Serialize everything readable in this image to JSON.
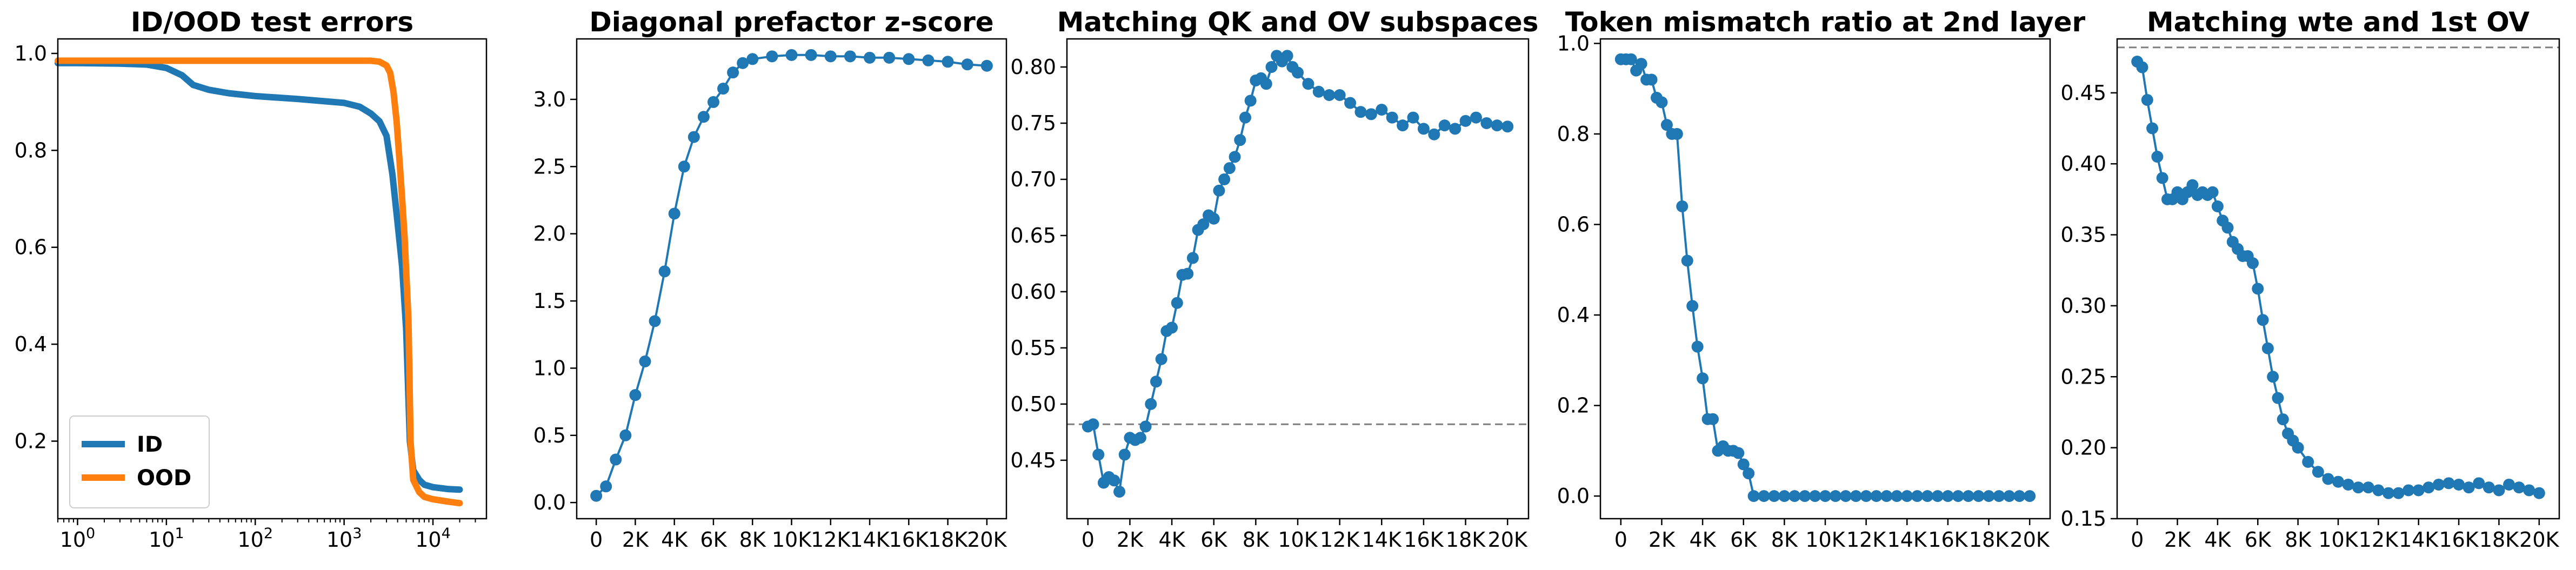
{
  "chart_data": [
    {
      "type": "line",
      "title": "ID/OOD test errors",
      "xscale": "log",
      "xlim": [
        0.6,
        40000
      ],
      "ylim": [
        0.04,
        1.03
      ],
      "x_ticks": [
        1,
        10,
        100,
        1000,
        10000
      ],
      "x_tick_labels": [
        {
          "base": "10",
          "exp": "0"
        },
        {
          "base": "10",
          "exp": "1"
        },
        {
          "base": "10",
          "exp": "2"
        },
        {
          "base": "10",
          "exp": "3"
        },
        {
          "base": "10",
          "exp": "4"
        }
      ],
      "y_ticks": [
        0.2,
        0.4,
        0.6,
        0.8,
        1.0
      ],
      "y_tick_labels": [
        "0.2",
        "0.4",
        "0.6",
        "0.8",
        "1.0"
      ],
      "legend": {
        "placement": "lower-left",
        "entries": [
          "ID",
          "OOD"
        ]
      },
      "series": [
        {
          "name": "ID",
          "color": "#1f77b4",
          "x": [
            0.6,
            1,
            3,
            6,
            10,
            15,
            20,
            30,
            50,
            100,
            300,
            1000,
            1500,
            2000,
            2500,
            3000,
            3500,
            4000,
            4500,
            5000,
            5500,
            6000,
            7000,
            8000,
            10000,
            15000,
            20000
          ],
          "y": [
            0.98,
            0.98,
            0.979,
            0.977,
            0.97,
            0.955,
            0.935,
            0.925,
            0.918,
            0.912,
            0.906,
            0.898,
            0.89,
            0.876,
            0.86,
            0.83,
            0.75,
            0.65,
            0.56,
            0.43,
            0.2,
            0.14,
            0.12,
            0.11,
            0.105,
            0.101,
            0.1
          ]
        },
        {
          "name": "OOD",
          "color": "#ff7f0e",
          "x": [
            0.6,
            1,
            10,
            100,
            1000,
            2000,
            2500,
            3000,
            3300,
            3600,
            3900,
            4200,
            4500,
            4800,
            5000,
            5300,
            5600,
            6000,
            7000,
            8000,
            10000,
            15000,
            20000
          ],
          "y": [
            0.985,
            0.985,
            0.985,
            0.985,
            0.985,
            0.985,
            0.983,
            0.975,
            0.96,
            0.92,
            0.86,
            0.78,
            0.7,
            0.62,
            0.55,
            0.45,
            0.2,
            0.12,
            0.095,
            0.085,
            0.08,
            0.075,
            0.072
          ]
        }
      ]
    },
    {
      "type": "line",
      "title": "Diagonal prefactor z-score",
      "xlim": [
        -1000,
        21000
      ],
      "ylim": [
        -0.12,
        3.45
      ],
      "x_ticks": [
        0,
        2000,
        4000,
        6000,
        8000,
        10000,
        12000,
        14000,
        16000,
        18000,
        20000
      ],
      "x_tick_labels": [
        "0",
        "2K",
        "4K",
        "6K",
        "8K",
        "10K",
        "12K",
        "14K",
        "16K",
        "18K",
        "20K"
      ],
      "y_ticks": [
        0.0,
        0.5,
        1.0,
        1.5,
        2.0,
        2.5,
        3.0
      ],
      "y_tick_labels": [
        "0.0",
        "0.5",
        "1.0",
        "1.5",
        "2.0",
        "2.5",
        "3.0"
      ],
      "series": [
        {
          "color": "#1f77b4",
          "marker": "circle",
          "x": [
            0,
            500,
            1000,
            1500,
            2000,
            2500,
            3000,
            3500,
            4000,
            4500,
            5000,
            5500,
            6000,
            6500,
            7000,
            7500,
            8000,
            9000,
            10000,
            11000,
            12000,
            13000,
            14000,
            15000,
            16000,
            17000,
            18000,
            19000,
            20000
          ],
          "y": [
            0.05,
            0.12,
            0.32,
            0.5,
            0.8,
            1.05,
            1.35,
            1.72,
            2.15,
            2.5,
            2.72,
            2.87,
            2.98,
            3.08,
            3.2,
            3.27,
            3.3,
            3.32,
            3.33,
            3.33,
            3.32,
            3.32,
            3.31,
            3.31,
            3.3,
            3.29,
            3.28,
            3.26,
            3.25
          ]
        }
      ]
    },
    {
      "type": "line",
      "title": "Matching QK and OV subspaces",
      "xlim": [
        -1000,
        21000
      ],
      "ylim": [
        0.398,
        0.825
      ],
      "x_ticks": [
        0,
        2000,
        4000,
        6000,
        8000,
        10000,
        12000,
        14000,
        16000,
        18000,
        20000
      ],
      "x_tick_labels": [
        "0",
        "2K",
        "4K",
        "6K",
        "8K",
        "10K",
        "12K",
        "14K",
        "16K",
        "18K",
        "20K"
      ],
      "y_ticks": [
        0.45,
        0.5,
        0.55,
        0.6,
        0.65,
        0.7,
        0.75,
        0.8
      ],
      "y_tick_labels": [
        "0.45",
        "0.50",
        "0.55",
        "0.60",
        "0.65",
        "0.70",
        "0.75",
        "0.80"
      ],
      "reference_line": {
        "y": 0.482,
        "style": "dashed",
        "color": "#7f7f7f"
      },
      "series": [
        {
          "color": "#1f77b4",
          "marker": "circle",
          "x": [
            0,
            250,
            500,
            750,
            1000,
            1250,
            1500,
            1750,
            2000,
            2250,
            2500,
            2750,
            3000,
            3250,
            3500,
            3750,
            4000,
            4250,
            4500,
            4750,
            5000,
            5250,
            5500,
            5750,
            6000,
            6250,
            6500,
            6750,
            7000,
            7250,
            7500,
            7750,
            8000,
            8250,
            8500,
            8750,
            9000,
            9250,
            9500,
            9750,
            10000,
            10500,
            11000,
            11500,
            12000,
            12500,
            13000,
            13500,
            14000,
            14500,
            15000,
            15500,
            16000,
            16500,
            17000,
            17500,
            18000,
            18500,
            19000,
            19500,
            20000
          ],
          "y": [
            0.48,
            0.482,
            0.455,
            0.43,
            0.435,
            0.432,
            0.422,
            0.455,
            0.47,
            0.468,
            0.47,
            0.48,
            0.5,
            0.52,
            0.54,
            0.565,
            0.568,
            0.59,
            0.615,
            0.616,
            0.63,
            0.655,
            0.66,
            0.668,
            0.665,
            0.69,
            0.7,
            0.71,
            0.72,
            0.735,
            0.755,
            0.77,
            0.788,
            0.79,
            0.785,
            0.8,
            0.81,
            0.805,
            0.81,
            0.8,
            0.795,
            0.785,
            0.778,
            0.775,
            0.775,
            0.768,
            0.76,
            0.758,
            0.762,
            0.755,
            0.748,
            0.755,
            0.745,
            0.74,
            0.748,
            0.745,
            0.752,
            0.755,
            0.75,
            0.748,
            0.747
          ]
        }
      ]
    },
    {
      "type": "line",
      "title": "Token mismatch ratio at 2nd layer",
      "xlim": [
        -1000,
        21000
      ],
      "ylim": [
        -0.05,
        1.01
      ],
      "x_ticks": [
        0,
        2000,
        4000,
        6000,
        8000,
        10000,
        12000,
        14000,
        16000,
        18000,
        20000
      ],
      "x_tick_labels": [
        "0",
        "2K",
        "4K",
        "6K",
        "8K",
        "10K",
        "12K",
        "14K",
        "16K",
        "18K",
        "20K"
      ],
      "y_ticks": [
        0.0,
        0.2,
        0.4,
        0.6,
        0.8,
        1.0
      ],
      "y_tick_labels": [
        "0.0",
        "0.2",
        "0.4",
        "0.6",
        "0.8",
        "1.0"
      ],
      "series": [
        {
          "color": "#1f77b4",
          "marker": "circle",
          "x": [
            0,
            250,
            500,
            750,
            1000,
            1250,
            1500,
            1750,
            2000,
            2250,
            2500,
            2750,
            3000,
            3250,
            3500,
            3750,
            4000,
            4250,
            4500,
            4750,
            5000,
            5250,
            5500,
            5750,
            6000,
            6250,
            6500,
            7000,
            7500,
            8000,
            8500,
            9000,
            9500,
            10000,
            10500,
            11000,
            11500,
            12000,
            12500,
            13000,
            13500,
            14000,
            14500,
            15000,
            15500,
            16000,
            16500,
            17000,
            17500,
            18000,
            18500,
            19000,
            19500,
            20000
          ],
          "y": [
            0.965,
            0.965,
            0.965,
            0.94,
            0.955,
            0.92,
            0.92,
            0.88,
            0.87,
            0.82,
            0.8,
            0.8,
            0.64,
            0.52,
            0.42,
            0.33,
            0.26,
            0.17,
            0.17,
            0.1,
            0.11,
            0.1,
            0.1,
            0.095,
            0.07,
            0.05,
            0.0,
            0.0,
            0.0,
            0.0,
            0.0,
            0.0,
            0.0,
            0.0,
            0.0,
            0.0,
            0.0,
            0.0,
            0.0,
            0.0,
            0.0,
            0.0,
            0.0,
            0.0,
            0.0,
            0.0,
            0.0,
            0.0,
            0.0,
            0.0,
            0.0,
            0.0,
            0.0,
            0.0
          ]
        }
      ]
    },
    {
      "type": "line",
      "title": "Matching wte and 1st OV",
      "xlim": [
        -1000,
        21000
      ],
      "ylim": [
        0.15,
        0.488
      ],
      "x_ticks": [
        0,
        2000,
        4000,
        6000,
        8000,
        10000,
        12000,
        14000,
        16000,
        18000,
        20000
      ],
      "x_tick_labels": [
        "0",
        "2K",
        "4K",
        "6K",
        "8K",
        "10K",
        "12K",
        "14K",
        "16K",
        "18K",
        "20K"
      ],
      "y_ticks": [
        0.15,
        0.2,
        0.25,
        0.3,
        0.35,
        0.4,
        0.45
      ],
      "y_tick_labels": [
        "0.15",
        "0.20",
        "0.25",
        "0.30",
        "0.35",
        "0.40",
        "0.45"
      ],
      "reference_line": {
        "y": 0.482,
        "style": "dashed",
        "color": "#7f7f7f"
      },
      "series": [
        {
          "color": "#1f77b4",
          "marker": "circle",
          "x": [
            0,
            250,
            500,
            750,
            1000,
            1250,
            1500,
            1750,
            2000,
            2250,
            2500,
            2750,
            3000,
            3250,
            3500,
            3750,
            4000,
            4250,
            4500,
            4750,
            5000,
            5250,
            5500,
            5750,
            6000,
            6250,
            6500,
            6750,
            7000,
            7250,
            7500,
            7750,
            8000,
            8500,
            9000,
            9500,
            10000,
            10500,
            11000,
            11500,
            12000,
            12500,
            13000,
            13500,
            14000,
            14500,
            15000,
            15500,
            16000,
            16500,
            17000,
            17500,
            18000,
            18500,
            19000,
            19500,
            20000
          ],
          "y": [
            0.472,
            0.468,
            0.445,
            0.425,
            0.405,
            0.39,
            0.375,
            0.375,
            0.38,
            0.375,
            0.38,
            0.385,
            0.378,
            0.38,
            0.378,
            0.38,
            0.37,
            0.36,
            0.355,
            0.345,
            0.34,
            0.335,
            0.335,
            0.33,
            0.312,
            0.29,
            0.27,
            0.25,
            0.235,
            0.22,
            0.21,
            0.205,
            0.2,
            0.19,
            0.183,
            0.178,
            0.176,
            0.174,
            0.172,
            0.172,
            0.17,
            0.168,
            0.168,
            0.17,
            0.17,
            0.172,
            0.174,
            0.175,
            0.174,
            0.172,
            0.175,
            0.172,
            0.17,
            0.174,
            0.172,
            0.17,
            0.168
          ]
        }
      ]
    }
  ]
}
